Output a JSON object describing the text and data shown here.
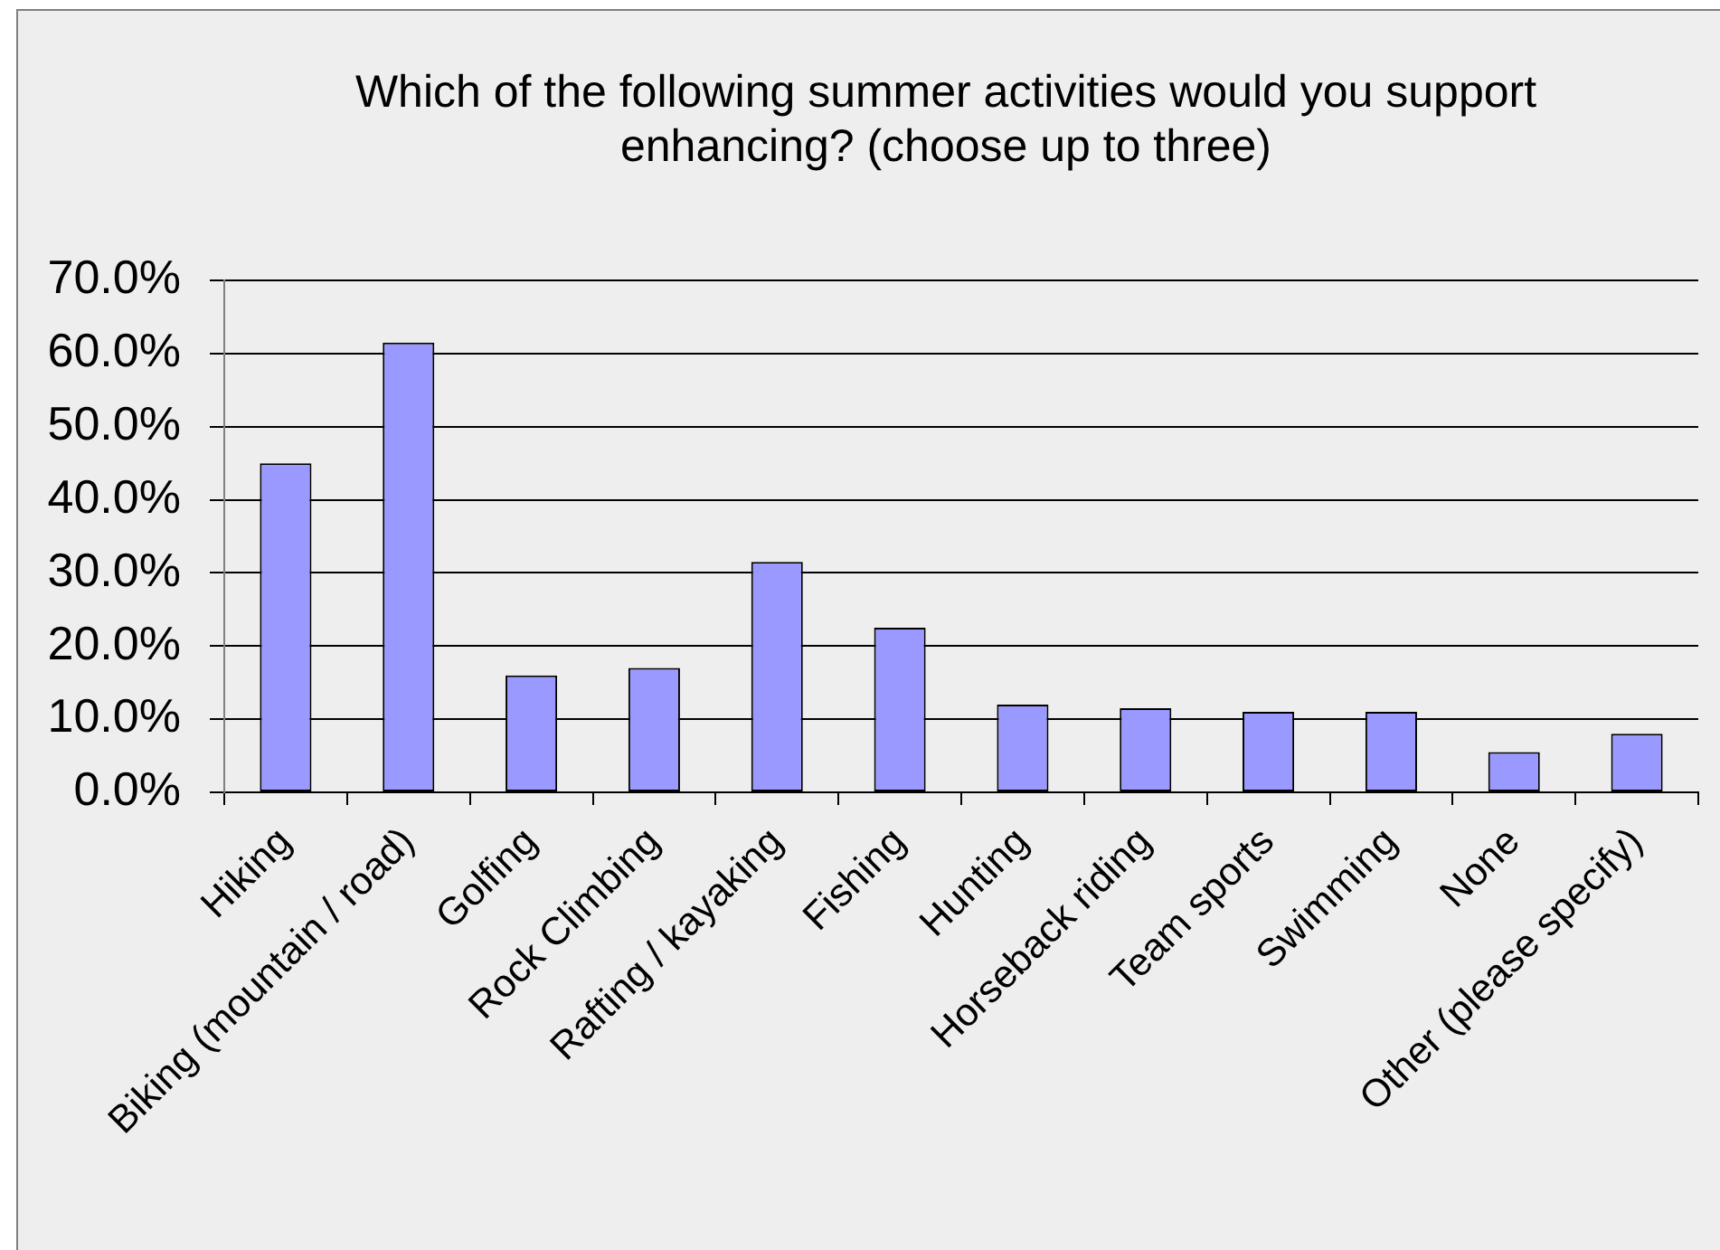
{
  "chart_data": {
    "type": "bar",
    "title": "Which of the following summer activities would you support enhancing? (choose up to three)",
    "categories": [
      "Hiking",
      "Biking (mountain / road)",
      "Golfing",
      "Rock Climbing",
      "Rafting / kayaking",
      "Fishing",
      "Hunting",
      "Horseback riding",
      "Team sports",
      "Swimming",
      "None",
      "Other (please specify)"
    ],
    "values": [
      45,
      61.5,
      16,
      17,
      31.5,
      22.5,
      12,
      11.5,
      11,
      11,
      5.5,
      8
    ],
    "color": "#9999ff",
    "ylim": [
      0,
      70
    ],
    "yticks": [
      {
        "value": 0,
        "label": "0.0%"
      },
      {
        "value": 10,
        "label": "10.0%"
      },
      {
        "value": 20,
        "label": "20.0%"
      },
      {
        "value": 30,
        "label": "30.0%"
      },
      {
        "value": 40,
        "label": "40.0%"
      },
      {
        "value": 50,
        "label": "50.0%"
      },
      {
        "value": 60,
        "label": "60.0%"
      },
      {
        "value": 70,
        "label": "70.0%"
      }
    ],
    "grid": "y"
  }
}
